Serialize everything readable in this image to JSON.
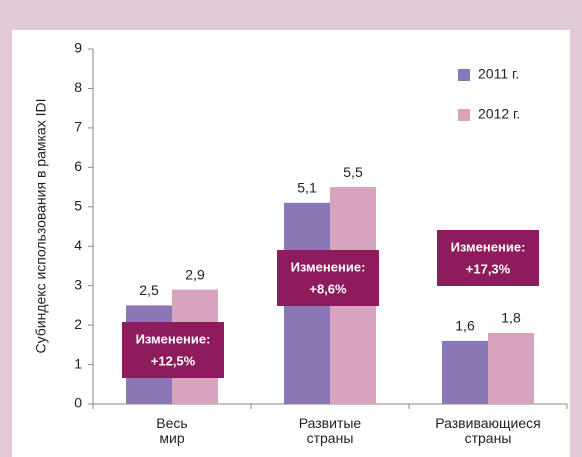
{
  "chart_data": {
    "type": "bar",
    "ylabel": "Субиндекс использования в рамках IDI",
    "categories": [
      "Весь мир",
      "Развитые страны",
      "Развивающиеся страны"
    ],
    "series": [
      {
        "name": "2011 г.",
        "color": "#8a78b6",
        "values": [
          2.5,
          5.1,
          1.6
        ],
        "value_labels": [
          "2,5",
          "5,1",
          "1,6"
        ]
      },
      {
        "name": "2012 г.",
        "color": "#d8a4bd",
        "values": [
          2.9,
          5.5,
          1.8
        ],
        "value_labels": [
          "2,9",
          "5,5",
          "1,8"
        ]
      }
    ],
    "ylim": [
      0,
      9
    ],
    "yticks": [
      0,
      1,
      2,
      3,
      4,
      5,
      6,
      7,
      8,
      9
    ],
    "legend": "upper right",
    "annotations": [
      {
        "label": "Изменение:",
        "value": "+12,5%"
      },
      {
        "label": "Изменение:",
        "value": "+8,6%"
      },
      {
        "label": "Изменение:",
        "value": "+17,3%"
      }
    ],
    "annotation_color": "#8e1c5c"
  }
}
